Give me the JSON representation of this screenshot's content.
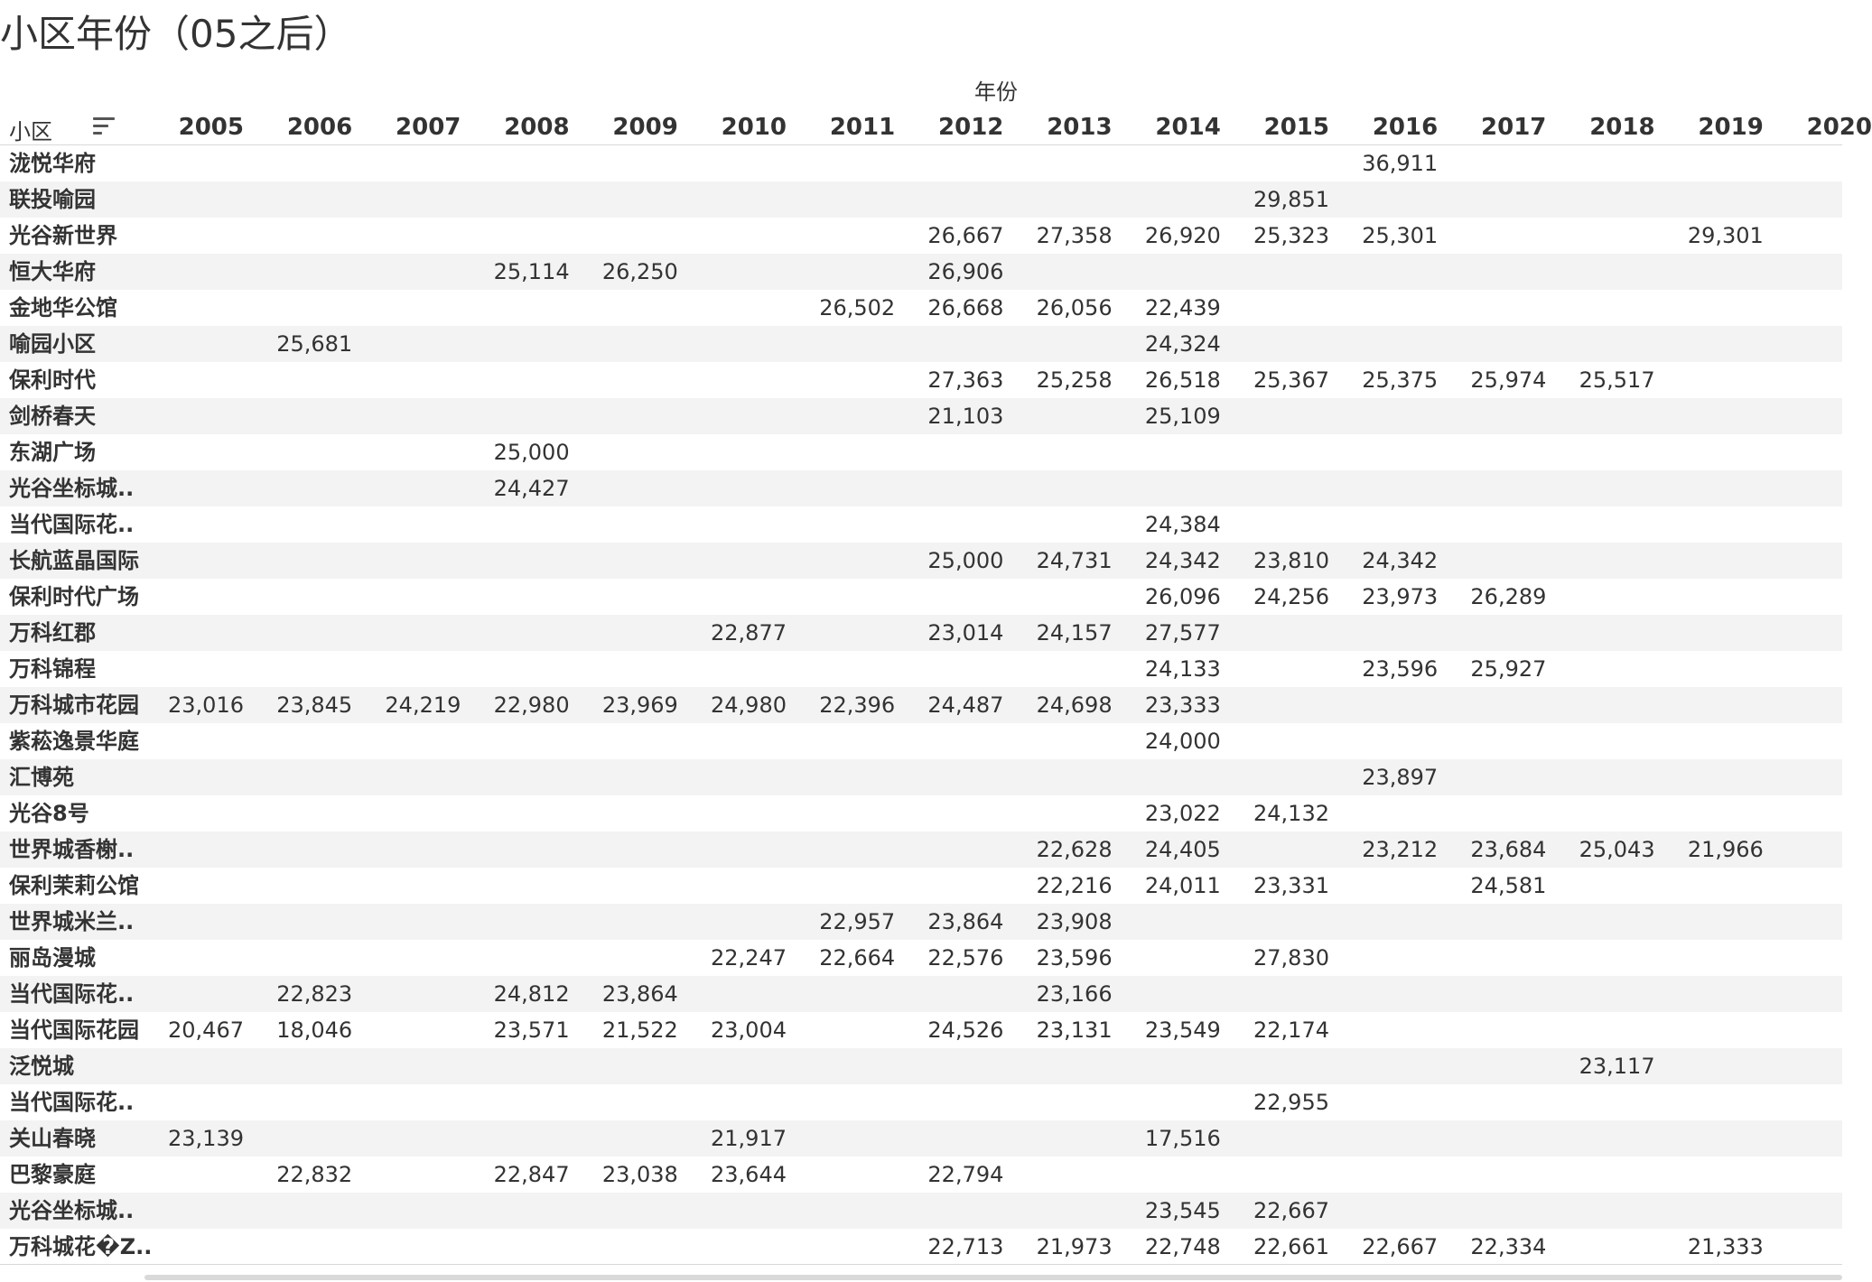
{
  "title": "小区年份（05之后）",
  "column_group_label": "年份",
  "row_header_label": "小区",
  "sort_icon": "sort-descending-icon",
  "years": [
    "2005",
    "2006",
    "2007",
    "2008",
    "2009",
    "2010",
    "2011",
    "2012",
    "2013",
    "2014",
    "2015",
    "2016",
    "2017",
    "2018",
    "2019",
    "2020"
  ],
  "rows": [
    {
      "name": "泷悦华府",
      "values": [
        "",
        "",
        "",
        "",
        "",
        "",
        "",
        "",
        "",
        "",
        "",
        "36,911",
        "",
        "",
        "",
        ""
      ]
    },
    {
      "name": "联投喻园",
      "values": [
        "",
        "",
        "",
        "",
        "",
        "",
        "",
        "",
        "",
        "",
        "29,851",
        "",
        "",
        "",
        "",
        ""
      ]
    },
    {
      "name": "光谷新世界",
      "values": [
        "",
        "",
        "",
        "",
        "",
        "",
        "",
        "26,667",
        "27,358",
        "26,920",
        "25,323",
        "25,301",
        "",
        "",
        "29,301",
        ""
      ]
    },
    {
      "name": "恒大华府",
      "values": [
        "",
        "",
        "",
        "25,114",
        "26,250",
        "",
        "",
        "26,906",
        "",
        "",
        "",
        "",
        "",
        "",
        "",
        ""
      ]
    },
    {
      "name": "金地华公馆",
      "values": [
        "",
        "",
        "",
        "",
        "",
        "",
        "26,502",
        "26,668",
        "26,056",
        "22,439",
        "",
        "",
        "",
        "",
        "",
        ""
      ]
    },
    {
      "name": "喻园小区",
      "values": [
        "",
        "25,681",
        "",
        "",
        "",
        "",
        "",
        "",
        "",
        "24,324",
        "",
        "",
        "",
        "",
        "",
        ""
      ]
    },
    {
      "name": "保利时代",
      "values": [
        "",
        "",
        "",
        "",
        "",
        "",
        "",
        "27,363",
        "25,258",
        "26,518",
        "25,367",
        "25,375",
        "25,974",
        "25,517",
        "",
        ""
      ]
    },
    {
      "name": "剑桥春天",
      "values": [
        "",
        "",
        "",
        "",
        "",
        "",
        "",
        "21,103",
        "",
        "25,109",
        "",
        "",
        "",
        "",
        "",
        ""
      ]
    },
    {
      "name": "东湖广场",
      "values": [
        "",
        "",
        "",
        "25,000",
        "",
        "",
        "",
        "",
        "",
        "",
        "",
        "",
        "",
        "",
        "",
        ""
      ]
    },
    {
      "name": "光谷坐标城..",
      "values": [
        "",
        "",
        "",
        "24,427",
        "",
        "",
        "",
        "",
        "",
        "",
        "",
        "",
        "",
        "",
        "",
        ""
      ]
    },
    {
      "name": "当代国际花..",
      "values": [
        "",
        "",
        "",
        "",
        "",
        "",
        "",
        "",
        "",
        "24,384",
        "",
        "",
        "",
        "",
        "",
        ""
      ]
    },
    {
      "name": "长航蓝晶国际",
      "values": [
        "",
        "",
        "",
        "",
        "",
        "",
        "",
        "25,000",
        "24,731",
        "24,342",
        "23,810",
        "24,342",
        "",
        "",
        "",
        ""
      ]
    },
    {
      "name": "保利时代广场",
      "values": [
        "",
        "",
        "",
        "",
        "",
        "",
        "",
        "",
        "",
        "26,096",
        "24,256",
        "23,973",
        "26,289",
        "",
        "",
        ""
      ]
    },
    {
      "name": "万科红郡",
      "values": [
        "",
        "",
        "",
        "",
        "",
        "22,877",
        "",
        "23,014",
        "24,157",
        "27,577",
        "",
        "",
        "",
        "",
        "",
        ""
      ]
    },
    {
      "name": "万科锦程",
      "values": [
        "",
        "",
        "",
        "",
        "",
        "",
        "",
        "",
        "",
        "24,133",
        "",
        "23,596",
        "25,927",
        "",
        "",
        ""
      ]
    },
    {
      "name": "万科城市花园",
      "values": [
        "23,016",
        "23,845",
        "24,219",
        "22,980",
        "23,969",
        "24,980",
        "22,396",
        "24,487",
        "24,698",
        "23,333",
        "",
        "",
        "",
        "",
        "",
        ""
      ]
    },
    {
      "name": "紫菘逸景华庭",
      "values": [
        "",
        "",
        "",
        "",
        "",
        "",
        "",
        "",
        "",
        "24,000",
        "",
        "",
        "",
        "",
        "",
        ""
      ]
    },
    {
      "name": "汇博苑",
      "values": [
        "",
        "",
        "",
        "",
        "",
        "",
        "",
        "",
        "",
        "",
        "",
        "23,897",
        "",
        "",
        "",
        ""
      ]
    },
    {
      "name": "光谷8号",
      "values": [
        "",
        "",
        "",
        "",
        "",
        "",
        "",
        "",
        "",
        "23,022",
        "24,132",
        "",
        "",
        "",
        "",
        ""
      ]
    },
    {
      "name": "世界城香榭..",
      "values": [
        "",
        "",
        "",
        "",
        "",
        "",
        "",
        "",
        "22,628",
        "24,405",
        "",
        "23,212",
        "23,684",
        "25,043",
        "21,966",
        ""
      ]
    },
    {
      "name": "保利茉莉公馆",
      "values": [
        "",
        "",
        "",
        "",
        "",
        "",
        "",
        "",
        "22,216",
        "24,011",
        "23,331",
        "",
        "24,581",
        "",
        "",
        ""
      ]
    },
    {
      "name": "世界城米兰..",
      "values": [
        "",
        "",
        "",
        "",
        "",
        "",
        "22,957",
        "23,864",
        "23,908",
        "",
        "",
        "",
        "",
        "",
        "",
        ""
      ]
    },
    {
      "name": "丽岛漫城",
      "values": [
        "",
        "",
        "",
        "",
        "",
        "22,247",
        "22,664",
        "22,576",
        "23,596",
        "",
        "27,830",
        "",
        "",
        "",
        "",
        ""
      ]
    },
    {
      "name": "当代国际花..",
      "values": [
        "",
        "22,823",
        "",
        "24,812",
        "23,864",
        "",
        "",
        "",
        "23,166",
        "",
        "",
        "",
        "",
        "",
        "",
        ""
      ]
    },
    {
      "name": "当代国际花园",
      "values": [
        "20,467",
        "18,046",
        "",
        "23,571",
        "21,522",
        "23,004",
        "",
        "24,526",
        "23,131",
        "23,549",
        "22,174",
        "",
        "",
        "",
        "",
        ""
      ]
    },
    {
      "name": "泛悦城",
      "values": [
        "",
        "",
        "",
        "",
        "",
        "",
        "",
        "",
        "",
        "",
        "",
        "",
        "",
        "23,117",
        "",
        ""
      ]
    },
    {
      "name": "当代国际花..",
      "values": [
        "",
        "",
        "",
        "",
        "",
        "",
        "",
        "",
        "",
        "",
        "22,955",
        "",
        "",
        "",
        "",
        ""
      ]
    },
    {
      "name": "关山春晓",
      "values": [
        "23,139",
        "",
        "",
        "",
        "",
        "21,917",
        "",
        "",
        "",
        "17,516",
        "",
        "",
        "",
        "",
        "",
        ""
      ]
    },
    {
      "name": "巴黎豪庭",
      "values": [
        "",
        "22,832",
        "",
        "22,847",
        "23,038",
        "23,644",
        "",
        "22,794",
        "",
        "",
        "",
        "",
        "",
        "",
        "",
        ""
      ]
    },
    {
      "name": "光谷坐标城..",
      "values": [
        "",
        "",
        "",
        "",
        "",
        "",
        "",
        "",
        "",
        "23,545",
        "22,667",
        "",
        "",
        "",
        "",
        ""
      ]
    },
    {
      "name": "万科城花�Z..",
      "values": [
        "",
        "",
        "",
        "",
        "",
        "",
        "",
        "22,713",
        "21,973",
        "22,748",
        "22,661",
        "22,667",
        "22,334",
        "",
        "21,333",
        ""
      ]
    }
  ]
}
